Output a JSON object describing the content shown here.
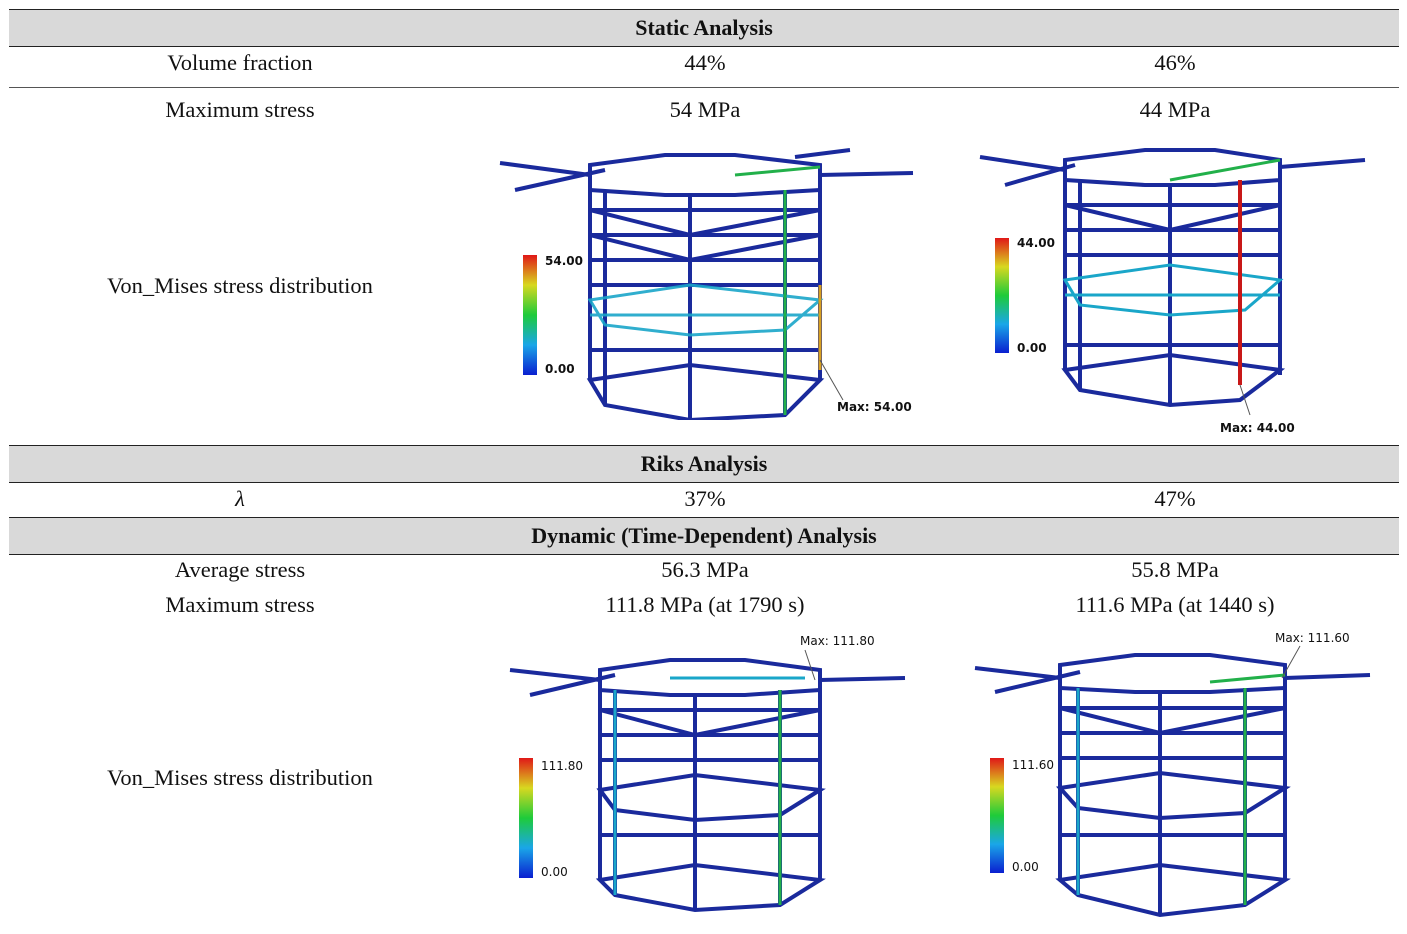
{
  "static": {
    "header": "Static Analysis",
    "volume_fraction": {
      "label": "Volume fraction",
      "values": [
        "44%",
        "46%"
      ]
    },
    "max_stress": {
      "label": "Maximum stress",
      "values": [
        "54 MPa",
        "44 MPa"
      ]
    },
    "distribution_label": "Von_Mises stress distribution",
    "plots": [
      {
        "legend_max": "54.00",
        "legend_min": "0.00",
        "max_callout": "Max: 54.00"
      },
      {
        "legend_max": "44.00",
        "legend_min": "0.00",
        "max_callout": "Max: 44.00"
      }
    ]
  },
  "riks": {
    "header": "Riks Analysis",
    "lambda": {
      "label": "λ",
      "values": [
        "37%",
        "47%"
      ]
    }
  },
  "dynamic": {
    "header": "Dynamic (Time-Dependent) Analysis",
    "avg_stress": {
      "label": "Average stress",
      "values": [
        "56.3 MPa",
        "55.8 MPa"
      ]
    },
    "max_stress": {
      "label": "Maximum stress",
      "values": [
        "111.8 MPa (at 1790 s)",
        "111.6 MPa (at 1440 s)"
      ]
    },
    "distribution_label": "Von_Mises stress distribution",
    "plots": [
      {
        "legend_max": "111.80",
        "legend_min": "0.00",
        "max_callout": "Max: 111.80"
      },
      {
        "legend_max": "111.60",
        "legend_min": "0.00",
        "max_callout": "Max: 111.60"
      }
    ]
  },
  "colors": {
    "header_band": "#d9d9d9",
    "frame_blue": "#1a2a9c",
    "stress_high": "#d42020",
    "stress_mid": "#22b04a",
    "stress_low": "#1aa6c9"
  }
}
